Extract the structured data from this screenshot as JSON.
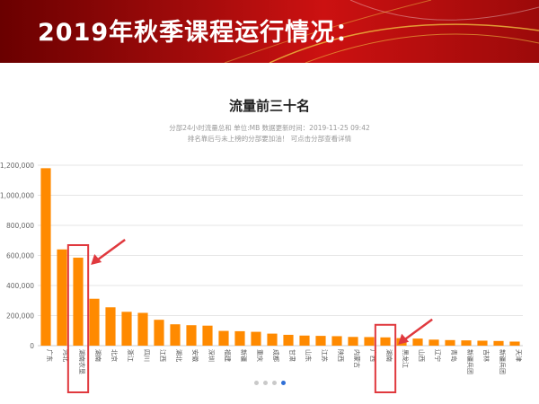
{
  "slide": {
    "title": "2019年秋季课程运行情况："
  },
  "chart_data": {
    "type": "bar",
    "title": "流量前三十名",
    "subtitle_lines": [
      "分部24小时流量总和 单位:MB  数据更新时间：2019-11-25 09:42",
      "排名靠后与未上榜的分部要加油！ 可点击分部查看详情"
    ],
    "categories": [
      "广东",
      "河北",
      "湖南农垦",
      "湖南",
      "北京",
      "浙江",
      "四川",
      "江西",
      "湖北",
      "安徽",
      "深圳",
      "福建",
      "新疆",
      "重庆",
      "成都",
      "甘肃",
      "山东",
      "江苏",
      "陕西",
      "内蒙古",
      "广西",
      "湖南",
      "黑龙江",
      "山西",
      "辽宁",
      "青岛",
      "新疆兵团",
      "吉林",
      "新疆兵团",
      "天津"
    ],
    "values": [
      1180000,
      640000,
      585000,
      312000,
      255000,
      225000,
      218000,
      172000,
      142000,
      136000,
      133000,
      98000,
      96000,
      92000,
      80000,
      72000,
      67000,
      65000,
      63000,
      58000,
      57000,
      55000,
      50000,
      47000,
      40000,
      37000,
      35000,
      33000,
      31000,
      27000
    ],
    "y_ticks": [
      "0",
      "200,000",
      "400,000",
      "600,000",
      "800,000",
      "1,000,000",
      "1,200,000"
    ],
    "ylim": [
      0,
      1200000
    ],
    "bar_color": "#ff8a00",
    "highlight_color": "#e0393e",
    "highlighted_indices": [
      2,
      21
    ],
    "grid": true,
    "legend": "none",
    "pager": {
      "pages": 4,
      "active": 4
    }
  }
}
